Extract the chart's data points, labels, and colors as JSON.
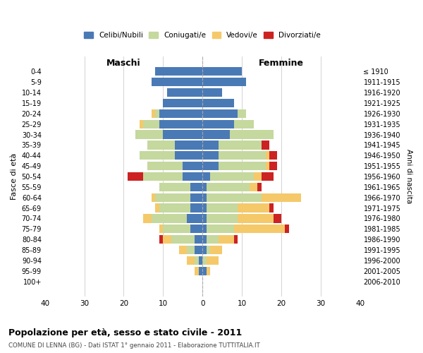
{
  "age_groups": [
    "0-4",
    "5-9",
    "10-14",
    "15-19",
    "20-24",
    "25-29",
    "30-34",
    "35-39",
    "40-44",
    "45-49",
    "50-54",
    "55-59",
    "60-64",
    "65-69",
    "70-74",
    "75-79",
    "80-84",
    "85-89",
    "90-94",
    "95-99",
    "100+"
  ],
  "birth_years": [
    "2006-2010",
    "2001-2005",
    "1996-2000",
    "1991-1995",
    "1986-1990",
    "1981-1985",
    "1976-1980",
    "1971-1975",
    "1966-1970",
    "1961-1965",
    "1956-1960",
    "1951-1955",
    "1946-1950",
    "1941-1945",
    "1936-1940",
    "1931-1935",
    "1926-1930",
    "1921-1925",
    "1916-1920",
    "1911-1915",
    "≤ 1910"
  ],
  "colors": {
    "celibe": "#4a7ab5",
    "coniugato": "#c5d89e",
    "vedovo": "#f5c96a",
    "divorziato": "#cc2222"
  },
  "males": {
    "celibe": [
      12,
      13,
      9,
      10,
      11,
      11,
      10,
      7,
      7,
      5,
      5,
      3,
      3,
      3,
      4,
      3,
      2,
      2,
      1,
      1,
      0
    ],
    "coniugato": [
      0,
      0,
      0,
      0,
      1,
      4,
      7,
      7,
      9,
      9,
      10,
      8,
      9,
      8,
      9,
      7,
      6,
      2,
      1,
      0,
      0
    ],
    "vedovo": [
      0,
      0,
      0,
      0,
      1,
      1,
      0,
      0,
      0,
      0,
      0,
      0,
      1,
      1,
      2,
      1,
      2,
      2,
      2,
      1,
      0
    ],
    "divorziato": [
      0,
      0,
      0,
      0,
      0,
      0,
      0,
      0,
      0,
      0,
      4,
      0,
      0,
      0,
      0,
      0,
      1,
      0,
      0,
      0,
      0
    ]
  },
  "females": {
    "nubile": [
      10,
      11,
      5,
      8,
      9,
      8,
      7,
      4,
      4,
      4,
      2,
      1,
      1,
      1,
      1,
      1,
      1,
      1,
      0,
      1,
      0
    ],
    "coniugata": [
      0,
      0,
      0,
      0,
      2,
      5,
      11,
      11,
      12,
      12,
      11,
      11,
      14,
      8,
      8,
      7,
      3,
      1,
      1,
      0,
      0
    ],
    "vedova": [
      0,
      0,
      0,
      0,
      0,
      0,
      0,
      0,
      1,
      1,
      2,
      2,
      10,
      8,
      9,
      13,
      4,
      3,
      3,
      1,
      0
    ],
    "divorziata": [
      0,
      0,
      0,
      0,
      0,
      0,
      0,
      2,
      2,
      2,
      3,
      1,
      0,
      1,
      2,
      1,
      1,
      0,
      0,
      0,
      0
    ]
  },
  "xlim": 40,
  "title": "Popolazione per età, sesso e stato civile - 2011",
  "subtitle": "COMUNE DI LENNA (BG) - Dati ISTAT 1° gennaio 2011 - Elaborazione TUTTITALIA.IT",
  "ylabel_left": "Fasce di età",
  "ylabel_right": "Anni di nascita",
  "xlabel_left": "Maschi",
  "xlabel_right": "Femmine",
  "bg_color": "#ffffff",
  "grid_color": "#cccccc"
}
